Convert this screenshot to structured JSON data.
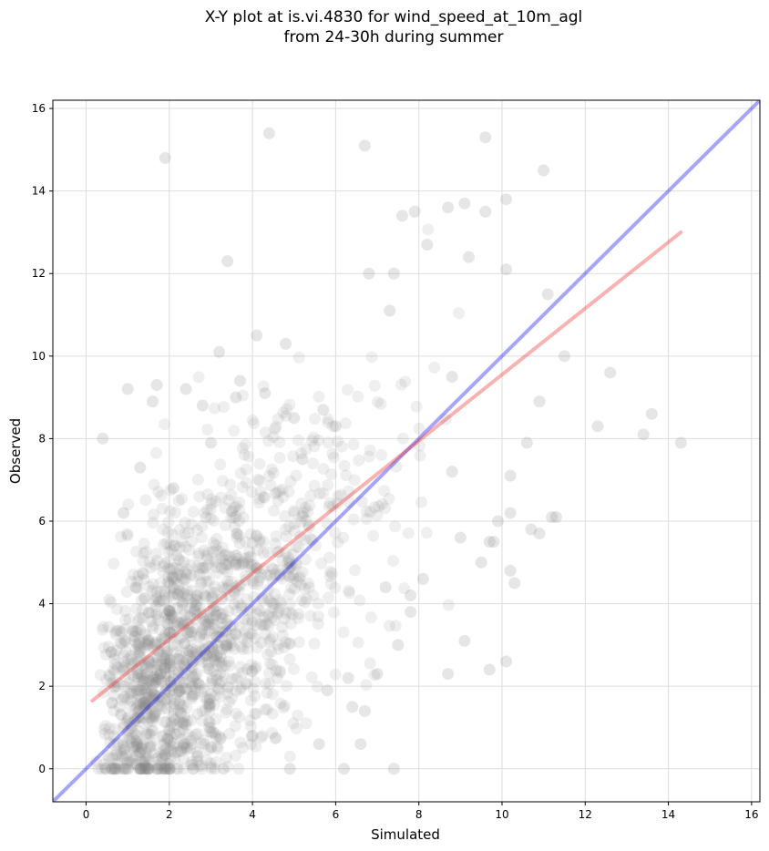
{
  "chart_data": {
    "type": "scatter",
    "title": [
      "X-Y plot at is.vi.4830 for wind_speed_at_10m_agl",
      "from 24-30h during summer"
    ],
    "xlabel": "Simulated",
    "ylabel": "Observed",
    "xlim": [
      -0.8,
      16.2
    ],
    "ylim": [
      -0.8,
      16.2
    ],
    "xticks": [
      0,
      2,
      4,
      6,
      8,
      10,
      12,
      14,
      16
    ],
    "yticks": [
      0,
      2,
      4,
      6,
      8,
      10,
      12,
      14,
      16
    ],
    "grid": true,
    "colors": {
      "points": "#808080",
      "identity_line": "#0000ee",
      "fit_line": "#ee2222"
    },
    "identity_line": {
      "x": [
        -0.8,
        16.2
      ],
      "y": [
        -0.8,
        16.2
      ]
    },
    "fit_line": {
      "x": [
        0.15,
        14.3
      ],
      "y": [
        1.65,
        13.0
      ]
    },
    "points": {
      "x": [
        1.9,
        4.4,
        6.7,
        9.6,
        11.0,
        3.4,
        10.1,
        9.1,
        9.6,
        7.6,
        7.9,
        8.7,
        8.2,
        9.2,
        10.1,
        12.3,
        13.6,
        14.3,
        13.4,
        12.6,
        11.5,
        10.9,
        10.6,
        11.2,
        10.7,
        10.9,
        11.3,
        11.1,
        10.3,
        10.2,
        9.9,
        9.8,
        10.1,
        10.2,
        9.7,
        9.5,
        8.7,
        9.1,
        9.7,
        9.0,
        8.8,
        10.2,
        8.1,
        7.5,
        7.8,
        6.7,
        8.8,
        7.3,
        7.8,
        7.2,
        7.4,
        6.6,
        6.4,
        6.3,
        5.8,
        6.8,
        7.4,
        4.1,
        1.0,
        0.4,
        1.7,
        2.4,
        2.8,
        3.7,
        4.8,
        1.3,
        1.6,
        2.1,
        3.2,
        3.6,
        0.9,
        4.3,
        5.0,
        5.2,
        3.0,
        5.7,
        6.0,
        4.9,
        5.6,
        6.2,
        7.0,
        4.0,
        3.3,
        1.5
      ],
      "y": [
        14.8,
        15.4,
        15.1,
        15.3,
        14.5,
        12.3,
        13.8,
        13.7,
        13.5,
        13.4,
        13.5,
        13.6,
        12.7,
        12.4,
        12.1,
        8.3,
        8.6,
        7.9,
        8.1,
        9.6,
        10.0,
        8.9,
        7.9,
        6.1,
        5.8,
        5.7,
        6.1,
        11.5,
        4.5,
        4.8,
        6.0,
        5.5,
        2.6,
        7.1,
        2.4,
        5.0,
        2.3,
        3.1,
        5.5,
        5.6,
        7.2,
        6.2,
        4.6,
        3.0,
        3.8,
        1.4,
        9.5,
        11.1,
        4.2,
        4.4,
        0.0,
        0.6,
        1.5,
        2.2,
        1.9,
        12.0,
        12.0,
        10.5,
        9.2,
        8.0,
        9.3,
        9.2,
        8.8,
        9.4,
        10.3,
        7.3,
        8.9,
        6.8,
        10.1,
        9.0,
        6.2,
        9.1,
        8.5,
        7.5,
        7.9,
        8.7,
        8.3,
        0.0,
        0.6,
        0.0,
        2.3,
        0.8,
        0.0,
        0.0
      ]
    }
  }
}
